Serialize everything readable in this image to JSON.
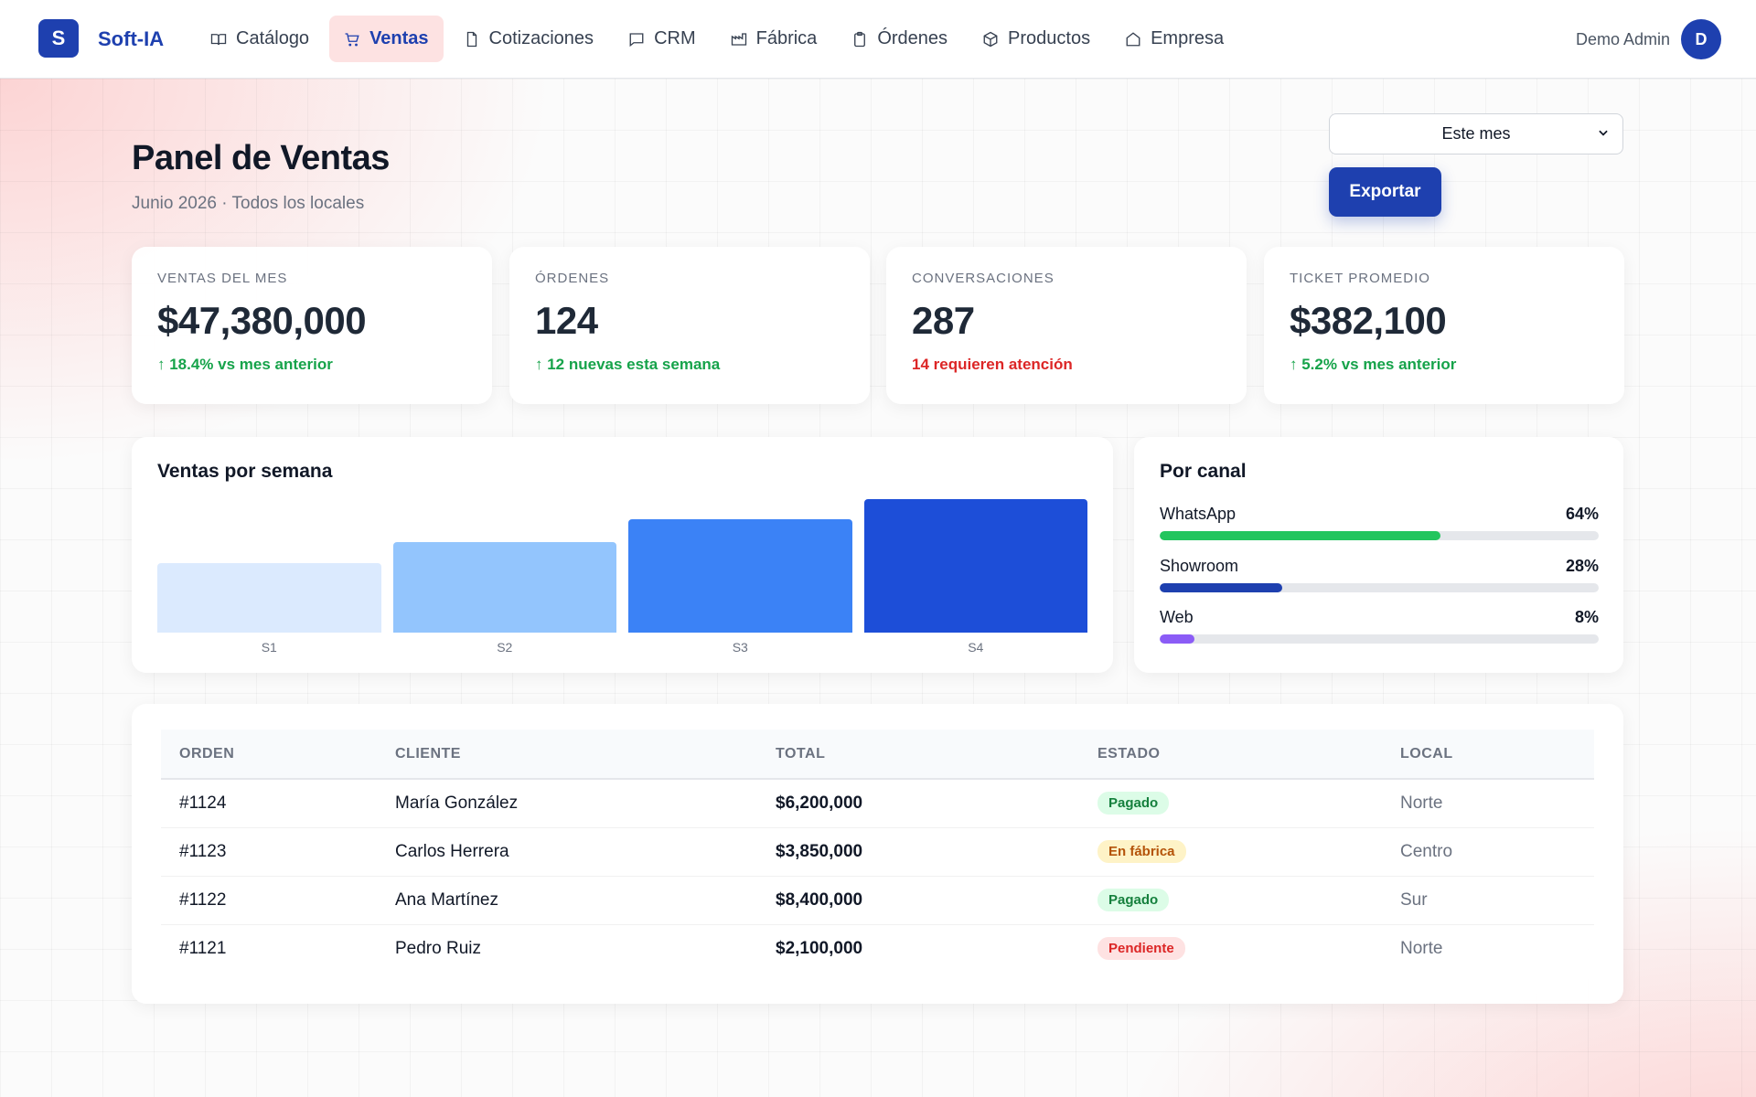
{
  "app": {
    "logo_letter": "S",
    "brand": "Soft-IA"
  },
  "nav": {
    "items": [
      {
        "label": "Catálogo",
        "icon": "book-icon",
        "active": false
      },
      {
        "label": "Ventas",
        "icon": "cart-icon",
        "active": true
      },
      {
        "label": "Cotizaciones",
        "icon": "document-icon",
        "active": false
      },
      {
        "label": "CRM",
        "icon": "chat-icon",
        "active": false
      },
      {
        "label": "Fábrica",
        "icon": "factory-icon",
        "active": false
      },
      {
        "label": "Órdenes",
        "icon": "clipboard-icon",
        "active": false
      },
      {
        "label": "Productos",
        "icon": "box-icon",
        "active": false
      },
      {
        "label": "Empresa",
        "icon": "home-icon",
        "active": false
      }
    ]
  },
  "user": {
    "name": "Demo Admin",
    "initial": "D"
  },
  "header": {
    "title": "Panel de Ventas",
    "subtitle": "Junio 2026 · Todos los locales",
    "period_selected": "Este mes",
    "export_label": "Exportar"
  },
  "kpis": [
    {
      "label": "VENTAS DEL MES",
      "value": "$47,380,000",
      "delta": "↑ 18.4% vs mes anterior",
      "tone": "up"
    },
    {
      "label": "ÓRDENES",
      "value": "124",
      "delta": "↑ 12 nuevas esta semana",
      "tone": "up"
    },
    {
      "label": "CONVERSACIONES",
      "value": "287",
      "delta": "14 requieren atención",
      "tone": "warn"
    },
    {
      "label": "TICKET PROMEDIO",
      "value": "$382,100",
      "delta": "↑ 5.2% vs mes anterior",
      "tone": "up"
    }
  ],
  "weekly_chart": {
    "title": "Ventas por semana"
  },
  "chart_data": {
    "type": "bar",
    "title": "Ventas por semana",
    "categories": [
      "S1",
      "S2",
      "S3",
      "S4"
    ],
    "values": [
      52,
      68,
      85,
      100
    ],
    "colors": [
      "#dbeafe",
      "#93c5fd",
      "#3b82f6",
      "#1d4ed8"
    ],
    "ylim": [
      0,
      100
    ],
    "grid": false
  },
  "channels": {
    "title": "Por canal",
    "items": [
      {
        "name": "WhatsApp",
        "pct_label": "64%",
        "pct": 64,
        "color": "#22c55e"
      },
      {
        "name": "Showroom",
        "pct_label": "28%",
        "pct": 28,
        "color": "#1e40af"
      },
      {
        "name": "Web",
        "pct_label": "8%",
        "pct": 8,
        "color": "#8b5cf6"
      }
    ]
  },
  "orders_table": {
    "columns": [
      "ORDEN",
      "CLIENTE",
      "TOTAL",
      "ESTADO",
      "LOCAL"
    ],
    "rows": [
      {
        "orden": "#1124",
        "cliente": "María González",
        "total": "$6,200,000",
        "estado": "Pagado",
        "estado_tone": "paid",
        "local": "Norte"
      },
      {
        "orden": "#1123",
        "cliente": "Carlos Herrera",
        "total": "$3,850,000",
        "estado": "En fábrica",
        "estado_tone": "factory",
        "local": "Centro"
      },
      {
        "orden": "#1122",
        "cliente": "Ana Martínez",
        "total": "$8,400,000",
        "estado": "Pagado",
        "estado_tone": "paid",
        "local": "Sur"
      },
      {
        "orden": "#1121",
        "cliente": "Pedro Ruiz",
        "total": "$2,100,000",
        "estado": "Pendiente",
        "estado_tone": "pending",
        "local": "Norte"
      }
    ]
  },
  "badge_colors": {
    "paid": {
      "bg": "#dcfce7",
      "fg": "#15803d"
    },
    "factory": {
      "bg": "#fef3c7",
      "fg": "#b45309"
    },
    "pending": {
      "bg": "#fee2e2",
      "fg": "#dc2626"
    }
  }
}
